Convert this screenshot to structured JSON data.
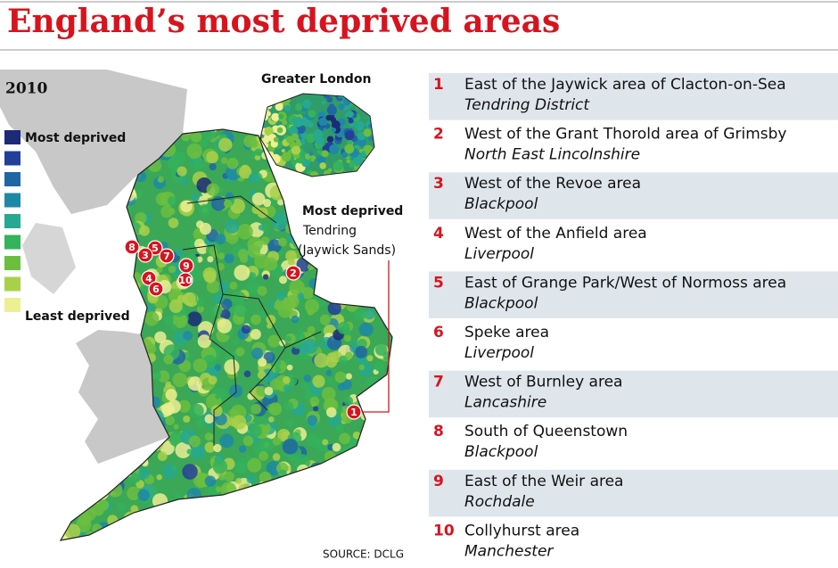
{
  "header": {
    "title": "England’s most deprived areas"
  },
  "map": {
    "year": "2010",
    "legend": {
      "top": "Most deprived",
      "bottom": "Least deprived",
      "colors": [
        "#1c2a78",
        "#22409a",
        "#1f66a3",
        "#1f88a6",
        "#27a891",
        "#34b25c",
        "#6cbe3f",
        "#a9d04a",
        "#ecef92"
      ]
    },
    "inset_title": "Greater London",
    "callout": {
      "title": "Most deprived",
      "lines": [
        "Tendring",
        "(Jaywick Sands)"
      ]
    },
    "markers": [
      "8",
      "5",
      "3",
      "7",
      "9",
      "4",
      "10",
      "6",
      "2",
      "1"
    ],
    "source": "SOURCE: DCLG"
  },
  "list": [
    {
      "number": "1",
      "place": "East of the Jaywick area of Clacton-on-Sea",
      "area": "Tendring District"
    },
    {
      "number": "2",
      "place": "West of the Grant Thorold area of Grimsby",
      "area": "North East Lincolnshire"
    },
    {
      "number": "3",
      "place": "West of the Revoe area",
      "area": "Blackpool"
    },
    {
      "number": "4",
      "place": "West of the Anfield area",
      "area": "Liverpool"
    },
    {
      "number": "5",
      "place": "East of Grange Park/West of Normoss area",
      "area": "Blackpool"
    },
    {
      "number": "6",
      "place": "Speke area",
      "area": "Liverpool"
    },
    {
      "number": "7",
      "place": "West of Burnley area",
      "area": "Lancashire"
    },
    {
      "number": "8",
      "place": "South of Queenstown",
      "area": "Blackpool"
    },
    {
      "number": "9",
      "place": "East of the Weir area",
      "area": "Rochdale"
    },
    {
      "number": "10",
      "place": "Collyhurst area",
      "area": "Manchester"
    }
  ]
}
